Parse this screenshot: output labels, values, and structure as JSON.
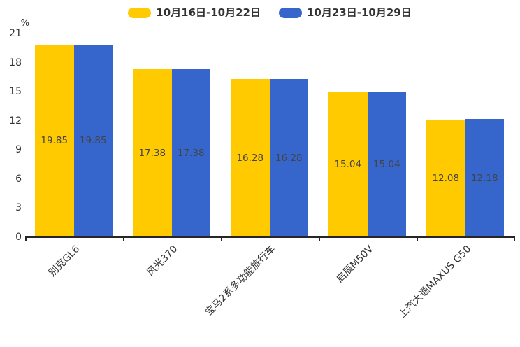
{
  "chart_data": {
    "type": "bar",
    "title": "",
    "xlabel": "",
    "ylabel": "%",
    "ylim": [
      0,
      21
    ],
    "yticks": [
      0,
      3,
      6,
      9,
      12,
      15,
      18,
      21
    ],
    "grid": false,
    "legend_position": "top",
    "categories": [
      "别克GL6",
      "风光370",
      "宝马2系多功能旅行车",
      "启辰M50V",
      "上汽大通MAXUS G50"
    ],
    "series": [
      {
        "name": "10月16日-10月22日",
        "color": "#FFCB00",
        "values": [
          19.85,
          17.38,
          16.28,
          15.04,
          12.08
        ]
      },
      {
        "name": "10月23日-10月29日",
        "color": "#3666CC",
        "values": [
          19.85,
          17.38,
          16.28,
          15.04,
          12.18
        ]
      }
    ],
    "value_labels_shown": true
  },
  "colors": {
    "axis": "#262626",
    "tick_label": "#333333",
    "value_label": "#444444",
    "legend_text": "#333333",
    "background": "#ffffff"
  }
}
